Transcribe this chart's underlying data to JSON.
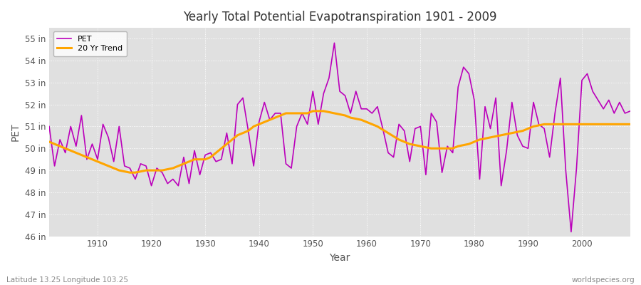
{
  "title": "Yearly Total Potential Evapotranspiration 1901 - 2009",
  "ylabel": "PET",
  "xlabel": "Year",
  "footnote_left": "Latitude 13.25 Longitude 103.25",
  "footnote_right": "worldspecies.org",
  "ylim": [
    46,
    55.5
  ],
  "yticks": [
    46,
    47,
    48,
    49,
    50,
    51,
    52,
    53,
    54,
    55
  ],
  "ytick_labels": [
    "46 in",
    "47 in",
    "48 in",
    "49 in",
    "50 in",
    "51 in",
    "52 in",
    "53 in",
    "54 in",
    "55 in"
  ],
  "bg_color": "#ffffff",
  "plot_bg_color": "#e0e0e0",
  "pet_color": "#bb00bb",
  "trend_color": "#ffa500",
  "pet_linewidth": 1.2,
  "trend_linewidth": 2.2,
  "years": [
    1901,
    1902,
    1903,
    1904,
    1905,
    1906,
    1907,
    1908,
    1909,
    1910,
    1911,
    1912,
    1913,
    1914,
    1915,
    1916,
    1917,
    1918,
    1919,
    1920,
    1921,
    1922,
    1923,
    1924,
    1925,
    1926,
    1927,
    1928,
    1929,
    1930,
    1931,
    1932,
    1933,
    1934,
    1935,
    1936,
    1937,
    1938,
    1939,
    1940,
    1941,
    1942,
    1943,
    1944,
    1945,
    1946,
    1947,
    1948,
    1949,
    1950,
    1951,
    1952,
    1953,
    1954,
    1955,
    1956,
    1957,
    1958,
    1959,
    1960,
    1961,
    1962,
    1963,
    1964,
    1965,
    1966,
    1967,
    1968,
    1969,
    1970,
    1971,
    1972,
    1973,
    1974,
    1975,
    1976,
    1977,
    1978,
    1979,
    1980,
    1981,
    1982,
    1983,
    1984,
    1985,
    1986,
    1987,
    1988,
    1989,
    1990,
    1991,
    1992,
    1993,
    1994,
    1995,
    1996,
    1997,
    1998,
    1999,
    2000,
    2001,
    2002,
    2003,
    2004,
    2005,
    2006,
    2007,
    2008,
    2009
  ],
  "pet": [
    51.0,
    49.2,
    50.4,
    49.8,
    51.0,
    50.1,
    51.5,
    49.5,
    50.2,
    49.5,
    51.1,
    50.5,
    49.4,
    51.0,
    49.2,
    49.1,
    48.6,
    49.3,
    49.2,
    48.3,
    49.1,
    48.9,
    48.4,
    48.6,
    48.3,
    49.6,
    48.4,
    49.9,
    48.8,
    49.7,
    49.8,
    49.4,
    49.5,
    50.7,
    49.3,
    52.0,
    52.3,
    50.8,
    49.2,
    51.2,
    52.1,
    51.3,
    51.6,
    51.6,
    49.3,
    49.1,
    51.0,
    51.6,
    51.1,
    52.6,
    51.1,
    52.5,
    53.2,
    54.8,
    52.6,
    52.4,
    51.6,
    52.6,
    51.8,
    51.8,
    51.6,
    51.9,
    50.9,
    49.8,
    49.6,
    51.1,
    50.8,
    49.4,
    50.9,
    51.0,
    48.8,
    51.6,
    51.2,
    48.9,
    50.1,
    49.8,
    52.8,
    53.7,
    53.4,
    52.2,
    48.6,
    51.9,
    50.9,
    52.3,
    48.3,
    49.9,
    52.1,
    50.6,
    50.1,
    50.0,
    52.1,
    51.1,
    50.9,
    49.6,
    51.6,
    53.2,
    49.0,
    46.2,
    49.1,
    53.1,
    53.4,
    52.6,
    52.2,
    51.8,
    52.2,
    51.6,
    52.1,
    51.6,
    51.7
  ],
  "trend_years": [
    1901,
    1902,
    1903,
    1904,
    1905,
    1906,
    1907,
    1908,
    1909,
    1910,
    1911,
    1912,
    1913,
    1914,
    1915,
    1916,
    1917,
    1918,
    1919,
    1920,
    1921,
    1922,
    1923,
    1924,
    1925,
    1926,
    1927,
    1928,
    1929,
    1930,
    1931,
    1932,
    1933,
    1934,
    1935,
    1936,
    1937,
    1938,
    1939,
    1940,
    1941,
    1942,
    1943,
    1944,
    1945,
    1946,
    1947,
    1948,
    1949,
    1950,
    1951,
    1952,
    1953,
    1954,
    1955,
    1956,
    1957,
    1958,
    1959,
    1960,
    1961,
    1962,
    1963,
    1964,
    1965,
    1966,
    1967,
    1968,
    1969,
    1970,
    1971,
    1972,
    1973,
    1974,
    1975,
    1976,
    1977,
    1978,
    1979,
    1980,
    1981,
    1982,
    1983,
    1984,
    1985,
    1986,
    1987,
    1988,
    1989,
    1990,
    1991,
    1992,
    1993,
    1994,
    1995,
    1996,
    1997,
    1998,
    1999,
    2000,
    2001,
    2002,
    2003,
    2004,
    2005,
    2006,
    2007,
    2008,
    2009
  ],
  "trend": [
    50.3,
    50.2,
    50.1,
    50.0,
    49.9,
    49.8,
    49.7,
    49.6,
    49.5,
    49.4,
    49.3,
    49.2,
    49.1,
    49.0,
    48.95,
    48.9,
    48.9,
    48.95,
    49.0,
    49.0,
    49.0,
    49.0,
    49.05,
    49.1,
    49.2,
    49.3,
    49.4,
    49.5,
    49.5,
    49.5,
    49.6,
    49.8,
    50.0,
    50.2,
    50.4,
    50.6,
    50.7,
    50.8,
    51.0,
    51.1,
    51.2,
    51.3,
    51.4,
    51.5,
    51.6,
    51.6,
    51.6,
    51.6,
    51.6,
    51.7,
    51.7,
    51.7,
    51.65,
    51.6,
    51.55,
    51.5,
    51.4,
    51.35,
    51.3,
    51.2,
    51.1,
    51.0,
    50.85,
    50.7,
    50.55,
    50.4,
    50.3,
    50.2,
    50.15,
    50.1,
    50.05,
    50.0,
    50.0,
    50.0,
    50.0,
    50.0,
    50.1,
    50.15,
    50.2,
    50.3,
    50.4,
    50.45,
    50.5,
    50.55,
    50.6,
    50.65,
    50.7,
    50.75,
    50.8,
    50.9,
    51.0,
    51.05,
    51.1,
    51.1,
    51.1,
    51.1,
    51.1,
    51.1,
    51.1,
    51.1,
    51.1,
    51.1,
    51.1,
    51.1,
    51.1,
    51.1,
    51.1,
    51.1,
    51.1
  ]
}
